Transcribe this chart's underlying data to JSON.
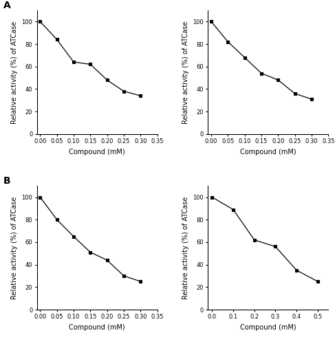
{
  "panel_A_left": {
    "x": [
      0.0,
      0.05,
      0.1,
      0.15,
      0.2,
      0.25,
      0.3
    ],
    "y": [
      100,
      84,
      64,
      62,
      48,
      38,
      34
    ],
    "xlim": [
      -0.01,
      0.35
    ],
    "xticks": [
      0.0,
      0.05,
      0.1,
      0.15,
      0.2,
      0.25,
      0.3,
      0.35
    ],
    "xtick_labels": [
      "0.00",
      "0.05",
      "0.10",
      "0.15",
      "0.20",
      "0.25",
      "0.30",
      "0.35"
    ],
    "ylim": [
      0,
      110
    ],
    "yticks": [
      0,
      20,
      40,
      60,
      80,
      100
    ],
    "xlabel": "Compound (mM)",
    "ylabel": "Relative activity (%) of ATCase",
    "label": "A"
  },
  "panel_A_right": {
    "x": [
      0.0,
      0.05,
      0.1,
      0.15,
      0.2,
      0.25,
      0.3
    ],
    "y": [
      100,
      82,
      68,
      54,
      48,
      36,
      31
    ],
    "xlim": [
      -0.01,
      0.35
    ],
    "xticks": [
      0.0,
      0.05,
      0.1,
      0.15,
      0.2,
      0.25,
      0.3,
      0.35
    ],
    "xtick_labels": [
      "0.00",
      "0.05",
      "0.10",
      "0.15",
      "0.20",
      "0.25",
      "0.30",
      "0.35"
    ],
    "ylim": [
      0,
      110
    ],
    "yticks": [
      0,
      20,
      40,
      60,
      80,
      100
    ],
    "xlabel": "Compound (mM)",
    "ylabel": "Relative activity (%) of ATCase",
    "label": ""
  },
  "panel_B_left": {
    "x": [
      0.0,
      0.05,
      0.1,
      0.15,
      0.2,
      0.25,
      0.3
    ],
    "y": [
      100,
      80,
      65,
      51,
      44,
      30,
      25
    ],
    "xlim": [
      -0.01,
      0.35
    ],
    "xticks": [
      0.0,
      0.05,
      0.1,
      0.15,
      0.2,
      0.25,
      0.3,
      0.35
    ],
    "xtick_labels": [
      "0.00",
      "0.05",
      "0.10",
      "0.15",
      "0.20",
      "0.25",
      "0.30",
      "0.35"
    ],
    "ylim": [
      0,
      110
    ],
    "yticks": [
      0,
      20,
      40,
      60,
      80,
      100
    ],
    "xlabel": "Compound (mM)",
    "ylabel": "Relative activity (%) of ATCase",
    "label": "B"
  },
  "panel_B_right": {
    "x": [
      0.0,
      0.1,
      0.2,
      0.3,
      0.4,
      0.5
    ],
    "y": [
      100,
      89,
      62,
      56,
      35,
      25
    ],
    "xlim": [
      -0.02,
      0.55
    ],
    "xticks": [
      0.0,
      0.1,
      0.2,
      0.3,
      0.4,
      0.5
    ],
    "xtick_labels": [
      "0.0",
      "0.1",
      "0.2",
      "0.3",
      "0.4",
      "0.5"
    ],
    "ylim": [
      0,
      110
    ],
    "yticks": [
      0,
      20,
      40,
      60,
      80,
      100
    ],
    "xlabel": "Compound (mM)",
    "ylabel": "Relative activity (%) of ATCase",
    "label": ""
  },
  "line_color": "#000000",
  "marker": "s",
  "marker_size": 3.5,
  "marker_color": "#000000",
  "line_width": 0.9,
  "font_size": 7,
  "label_font_size": 7,
  "tick_font_size": 6,
  "panel_label_fontsize": 10,
  "background_color": "#ffffff"
}
